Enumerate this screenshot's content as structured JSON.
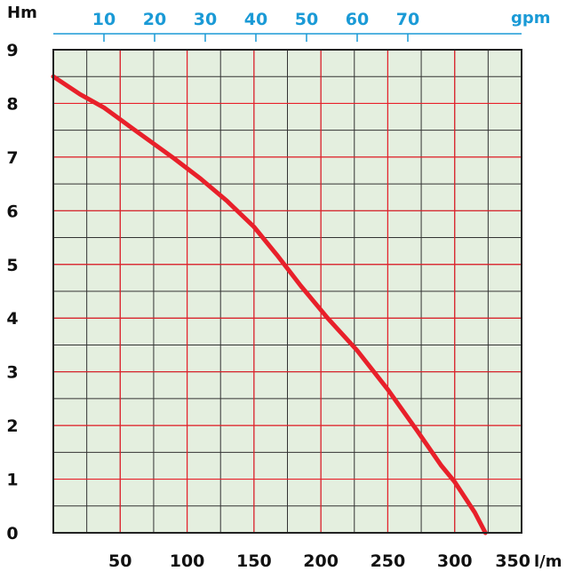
{
  "chart_data": {
    "type": "line",
    "y_unit": "Hm",
    "x_unit": "l/m",
    "top_unit": "gpm",
    "ylim": [
      0,
      9
    ],
    "xlim": [
      0,
      350
    ],
    "top_xlim": [
      0,
      92.46
    ],
    "y_ticks": [
      "0",
      "1",
      "2",
      "3",
      "4",
      "5",
      "6",
      "7",
      "8",
      "9"
    ],
    "x_ticks": [
      {
        "value": 50,
        "label": "50"
      },
      {
        "value": 100,
        "label": "100"
      },
      {
        "value": 150,
        "label": "150"
      },
      {
        "value": 200,
        "label": "200"
      },
      {
        "value": 250,
        "label": "250"
      },
      {
        "value": 300,
        "label": "300"
      },
      {
        "value": 350,
        "label": "350"
      }
    ],
    "top_ticks": [
      {
        "value": 10,
        "label": "10"
      },
      {
        "value": 20,
        "label": "20"
      },
      {
        "value": 30,
        "label": "30"
      },
      {
        "value": 40,
        "label": "40"
      },
      {
        "value": 50,
        "label": "50"
      },
      {
        "value": 60,
        "label": "60"
      },
      {
        "value": 70,
        "label": "70"
      }
    ],
    "grid": true,
    "series": [
      {
        "x": [
          0,
          20,
          38,
          60,
          90,
          110,
          130,
          150,
          167,
          185,
          205,
          227,
          250,
          272,
          290,
          300,
          315,
          323
        ],
        "y": [
          8.5,
          8.17,
          7.92,
          7.52,
          6.98,
          6.6,
          6.18,
          5.7,
          5.18,
          4.6,
          4.0,
          3.4,
          2.67,
          1.9,
          1.25,
          0.95,
          0.38,
          0.0
        ]
      }
    ],
    "colors": {
      "curve": "#e8202a",
      "major_grid": "#e8202a",
      "minor_grid": "#333333",
      "plot_bg": "#e4efdf",
      "top_axis": "#1a9ad6"
    }
  }
}
